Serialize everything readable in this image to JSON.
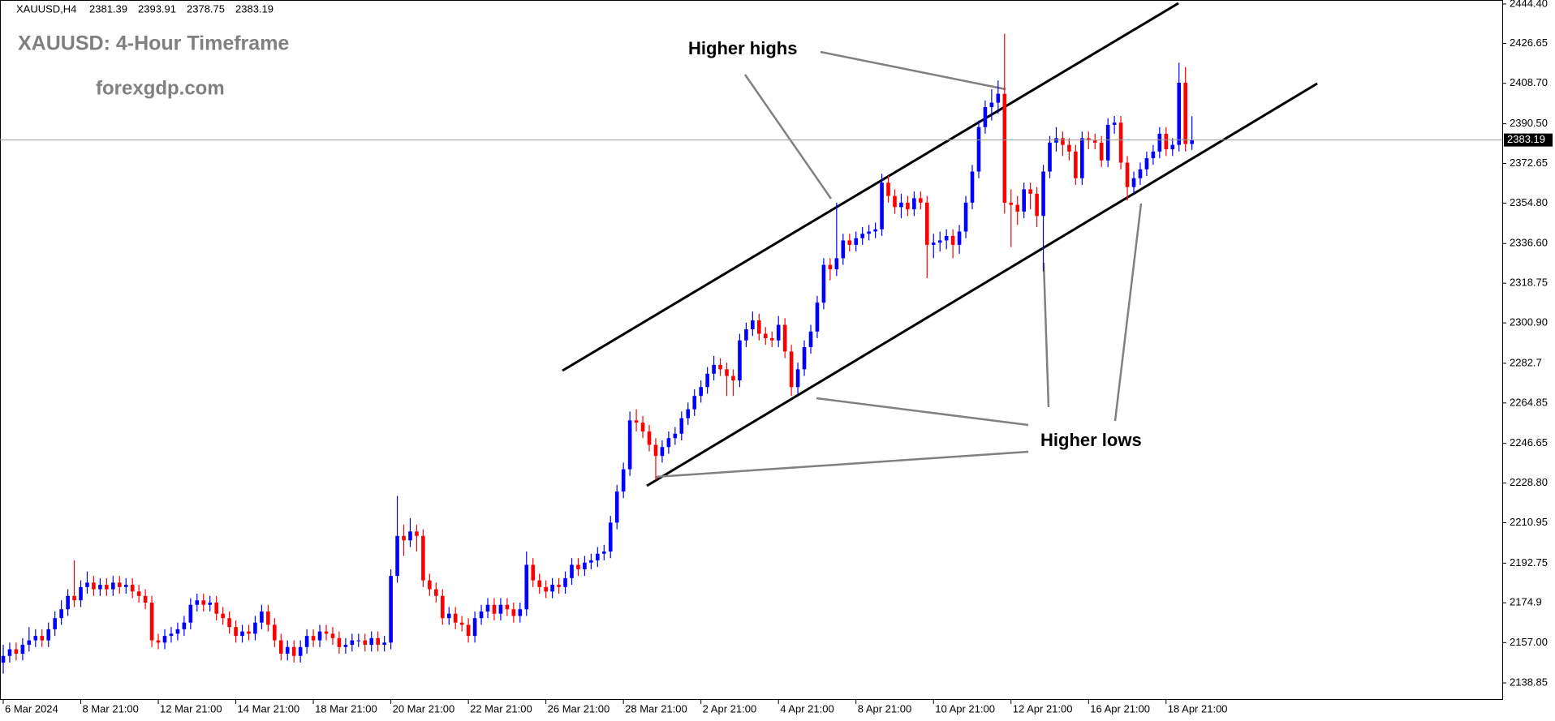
{
  "chart_data": {
    "type": "candlestick",
    "symbol": "XAUUSD,H4",
    "title": "XAUUSD: 4-Hour Timeframe",
    "subtitle": "forexgdp.com",
    "annotations": [
      "Higher highs",
      "Higher lows"
    ],
    "up_color": "#0000ff",
    "down_color": "#ff0000",
    "ylim": [
      2131.2,
      2446.2
    ],
    "yticks": [
      2138.85,
      {
        "value": 2157,
        "label": "2157.00"
      },
      2174.9,
      2192.75,
      2210.95,
      {
        "value": 2228.8,
        "label": "2228.80"
      },
      2246.65,
      2264.85,
      2282.7,
      {
        "value": 2300.9,
        "label": "2300.90"
      },
      2318.75,
      {
        "value": 2336.6,
        "label": "2336.60"
      },
      {
        "value": 2354.8,
        "label": "2354.80"
      },
      2372.65,
      {
        "value": 2390.5,
        "label": "2390.50"
      },
      {
        "value": 2408.7,
        "label": "2408.70"
      },
      2426.65,
      {
        "value": 2444.4,
        "label": "2444.40"
      }
    ],
    "categories": [
      "6 Mar 2024",
      null,
      null,
      null,
      null,
      null,
      null,
      null,
      null,
      null,
      null,
      null,
      "8 Mar 21:00",
      null,
      null,
      null,
      null,
      null,
      null,
      null,
      null,
      null,
      null,
      null,
      "12 Mar 21:00",
      null,
      null,
      null,
      null,
      null,
      null,
      null,
      null,
      null,
      null,
      null,
      "14 Mar 21:00",
      null,
      null,
      null,
      null,
      null,
      null,
      null,
      null,
      null,
      null,
      null,
      "18 Mar 21:00",
      null,
      null,
      null,
      null,
      null,
      null,
      null,
      null,
      null,
      null,
      null,
      "20 Mar 21:00",
      null,
      null,
      null,
      null,
      null,
      null,
      null,
      null,
      null,
      null,
      null,
      "22 Mar 21:00",
      null,
      null,
      null,
      null,
      null,
      null,
      null,
      null,
      null,
      null,
      null,
      "26 Mar 21:00",
      null,
      null,
      null,
      null,
      null,
      null,
      null,
      null,
      null,
      null,
      null,
      "28 Mar 21:00",
      null,
      null,
      null,
      null,
      null,
      null,
      null,
      null,
      null,
      null,
      null,
      "2 Apr 21:00",
      null,
      null,
      null,
      null,
      null,
      null,
      null,
      null,
      null,
      null,
      null,
      "4 Apr 21:00",
      null,
      null,
      null,
      null,
      null,
      null,
      null,
      null,
      null,
      null,
      null,
      "8 Apr 21:00",
      null,
      null,
      null,
      null,
      null,
      null,
      null,
      null,
      null,
      null,
      null,
      "10 Apr 21:00",
      null,
      null,
      null,
      null,
      null,
      null,
      null,
      null,
      null,
      null,
      null,
      "12 Apr 21:00",
      null,
      null,
      null,
      null,
      null,
      null,
      null,
      null,
      null,
      null,
      null,
      "16 Apr 21:00",
      null,
      null,
      null,
      null,
      null,
      null,
      null,
      null,
      null,
      null,
      null,
      "18 Apr 21:00",
      null,
      null,
      null,
      null
    ],
    "open": [
      2148,
      2151,
      2154,
      2152,
      2156,
      2158,
      2160,
      2158,
      2163,
      2168,
      2172,
      2178,
      2176,
      2182,
      2184,
      2181,
      2183,
      2181,
      2184,
      2182,
      2183,
      2180,
      2178,
      2175,
      2158,
      2157,
      2160,
      2161,
      2163,
      2166,
      2174,
      2176,
      2174,
      2175,
      2170,
      2168,
      2164,
      2160,
      2162,
      2161,
      2166,
      2171,
      2165,
      2158,
      2152,
      2155,
      2151,
      2155,
      2160,
      2158,
      2162,
      2161,
      2159,
      2155,
      2156,
      2158,
      2158,
      2156,
      2159,
      2156,
      2157,
      2187,
      2205,
      2203,
      2207,
      2205,
      2185,
      2181,
      2178,
      2168,
      2170,
      2166,
      2165,
      2160,
      2168,
      2171,
      2174,
      2170,
      2174,
      2172,
      2169,
      2172,
      2192,
      2185,
      2182,
      2180,
      2183,
      2182,
      2186,
      2192,
      2190,
      2193,
      2194,
      2197,
      2198,
      2211,
      2225,
      2235,
      2257,
      2256,
      2252,
      2246,
      2241,
      2245,
      2249,
      2251,
      2258,
      2262,
      2268,
      2272,
      2278,
      2282,
      2280,
      2277,
      2275,
      2293,
      2298,
      2302,
      2296,
      2294,
      2293,
      2300,
      2288,
      2272,
      2280,
      2290,
      2297,
      2310,
      2327,
      2325,
      2330,
      2338,
      2336,
      2339,
      2341,
      2342,
      2343,
      2364,
      2358,
      2353,
      2355,
      2352,
      2357,
      2355,
      2336,
      2337,
      2338,
      2340,
      2336,
      2342,
      2355,
      2369,
      2389,
      2398,
      2400,
      2404,
      2355,
      2354,
      2351,
      2361,
      2359,
      2349,
      2369,
      2382,
      2384,
      2381,
      2378,
      2366,
      2384,
      2383,
      2382,
      2374,
      2390,
      2391,
      2373,
      2362,
      2366,
      2370,
      2375,
      2378,
      2386,
      2379,
      2381,
      2409,
      2381.39
    ],
    "high": [
      2156,
      2157,
      2157,
      2159,
      2164,
      2163,
      2163,
      2166,
      2171,
      2176,
      2181,
      2194,
      2185,
      2189,
      2187,
      2186,
      2186,
      2187,
      2187,
      2186,
      2186,
      2183,
      2181,
      2178,
      2161,
      2163,
      2164,
      2166,
      2169,
      2177,
      2179,
      2179,
      2178,
      2178,
      2173,
      2171,
      2167,
      2165,
      2165,
      2169,
      2174,
      2174,
      2168,
      2161,
      2158,
      2158,
      2158,
      2163,
      2163,
      2165,
      2165,
      2164,
      2162,
      2159,
      2161,
      2161,
      2161,
      2162,
      2162,
      2160,
      2190,
      2223,
      2210,
      2213,
      2210,
      2208,
      2188,
      2184,
      2181,
      2173,
      2173,
      2169,
      2168,
      2171,
      2174,
      2177,
      2177,
      2177,
      2177,
      2175,
      2175,
      2198,
      2195,
      2188,
      2185,
      2186,
      2186,
      2189,
      2195,
      2195,
      2196,
      2197,
      2200,
      2201,
      2214,
      2228,
      2238,
      2261,
      2262,
      2259,
      2255,
      2249,
      2248,
      2252,
      2254,
      2261,
      2265,
      2271,
      2275,
      2281,
      2286,
      2285,
      2283,
      2280,
      2296,
      2301,
      2306,
      2305,
      2299,
      2297,
      2304,
      2303,
      2291,
      2283,
      2293,
      2300,
      2313,
      2330,
      2330,
      2355,
      2341,
      2341,
      2342,
      2344,
      2345,
      2346,
      2368,
      2367,
      2361,
      2359,
      2358,
      2360,
      2360,
      2358,
      2341,
      2342,
      2343,
      2343,
      2345,
      2358,
      2372,
      2392,
      2401,
      2406,
      2410,
      2431,
      2361,
      2358,
      2364,
      2364,
      2362,
      2372,
      2385,
      2389,
      2387,
      2384,
      2381,
      2387,
      2387,
      2386,
      2385,
      2393,
      2394,
      2394,
      2376,
      2369,
      2373,
      2378,
      2381,
      2389,
      2389,
      2384,
      2418,
      2416,
      2393.91
    ],
    "low": [
      2143,
      2148,
      2149,
      2149,
      2153,
      2155,
      2155,
      2155,
      2160,
      2165,
      2169,
      2173,
      2173,
      2179,
      2178,
      2178,
      2178,
      2178,
      2179,
      2179,
      2177,
      2175,
      2172,
      2155,
      2154,
      2154,
      2157,
      2158,
      2160,
      2163,
      2171,
      2171,
      2171,
      2167,
      2165,
      2161,
      2157,
      2157,
      2158,
      2158,
      2163,
      2162,
      2155,
      2149,
      2149,
      2148,
      2148,
      2152,
      2155,
      2155,
      2158,
      2156,
      2152,
      2152,
      2153,
      2155,
      2153,
      2153,
      2153,
      2153,
      2154,
      2184,
      2196,
      2200,
      2198,
      2182,
      2178,
      2175,
      2165,
      2165,
      2163,
      2162,
      2157,
      2157,
      2165,
      2168,
      2167,
      2167,
      2169,
      2166,
      2166,
      2169,
      2182,
      2179,
      2177,
      2177,
      2179,
      2179,
      2183,
      2187,
      2187,
      2190,
      2191,
      2194,
      2195,
      2208,
      2222,
      2232,
      2252,
      2249,
      2243,
      2230,
      2238,
      2242,
      2246,
      2248,
      2255,
      2259,
      2265,
      2269,
      2275,
      2277,
      2268,
      2268,
      2272,
      2290,
      2295,
      2293,
      2291,
      2290,
      2290,
      2285,
      2268,
      2269,
      2277,
      2287,
      2294,
      2307,
      2320,
      2322,
      2327,
      2333,
      2333,
      2336,
      2338,
      2339,
      2340,
      2355,
      2350,
      2348,
      2349,
      2349,
      2352,
      2321,
      2330,
      2333,
      2334,
      2330,
      2332,
      2339,
      2352,
      2366,
      2386,
      2392,
      2395,
      2350,
      2335,
      2345,
      2348,
      2352,
      2344,
      2324,
      2366,
      2378,
      2376,
      2374,
      2363,
      2363,
      2379,
      2379,
      2371,
      2371,
      2386,
      2370,
      2356,
      2359,
      2363,
      2367,
      2372,
      2375,
      2376,
      2376,
      2378,
      2378,
      2378.75
    ],
    "close": [
      2151,
      2154,
      2152,
      2156,
      2158,
      2160,
      2158,
      2163,
      2168,
      2172,
      2178,
      2176,
      2182,
      2184,
      2181,
      2183,
      2181,
      2184,
      2182,
      2183,
      2180,
      2178,
      2175,
      2158,
      2157,
      2160,
      2161,
      2163,
      2166,
      2174,
      2176,
      2174,
      2175,
      2170,
      2168,
      2164,
      2160,
      2162,
      2161,
      2166,
      2171,
      2165,
      2158,
      2152,
      2155,
      2151,
      2155,
      2160,
      2158,
      2162,
      2161,
      2159,
      2155,
      2156,
      2158,
      2158,
      2156,
      2159,
      2156,
      2157,
      2187,
      2205,
      2203,
      2207,
      2205,
      2185,
      2181,
      2178,
      2168,
      2170,
      2166,
      2165,
      2160,
      2168,
      2171,
      2174,
      2170,
      2174,
      2172,
      2169,
      2172,
      2192,
      2185,
      2182,
      2180,
      2183,
      2182,
      2186,
      2192,
      2190,
      2193,
      2194,
      2197,
      2198,
      2211,
      2225,
      2235,
      2257,
      2256,
      2252,
      2246,
      2241,
      2245,
      2249,
      2251,
      2258,
      2262,
      2268,
      2272,
      2278,
      2282,
      2280,
      2277,
      2275,
      2293,
      2298,
      2302,
      2296,
      2294,
      2293,
      2300,
      2288,
      2272,
      2280,
      2290,
      2297,
      2310,
      2327,
      2325,
      2330,
      2338,
      2336,
      2339,
      2341,
      2342,
      2343,
      2364,
      2358,
      2353,
      2355,
      2352,
      2357,
      2355,
      2336,
      2337,
      2338,
      2340,
      2336,
      2342,
      2355,
      2369,
      2389,
      2398,
      2400,
      2404,
      2355,
      2354,
      2351,
      2361,
      2359,
      2349,
      2369,
      2382,
      2384,
      2381,
      2378,
      2366,
      2384,
      2383,
      2382,
      2374,
      2390,
      2391,
      2373,
      2362,
      2366,
      2370,
      2375,
      2378,
      2386,
      2379,
      2381,
      2409,
      2381.39,
      2383.19
    ]
  }
}
